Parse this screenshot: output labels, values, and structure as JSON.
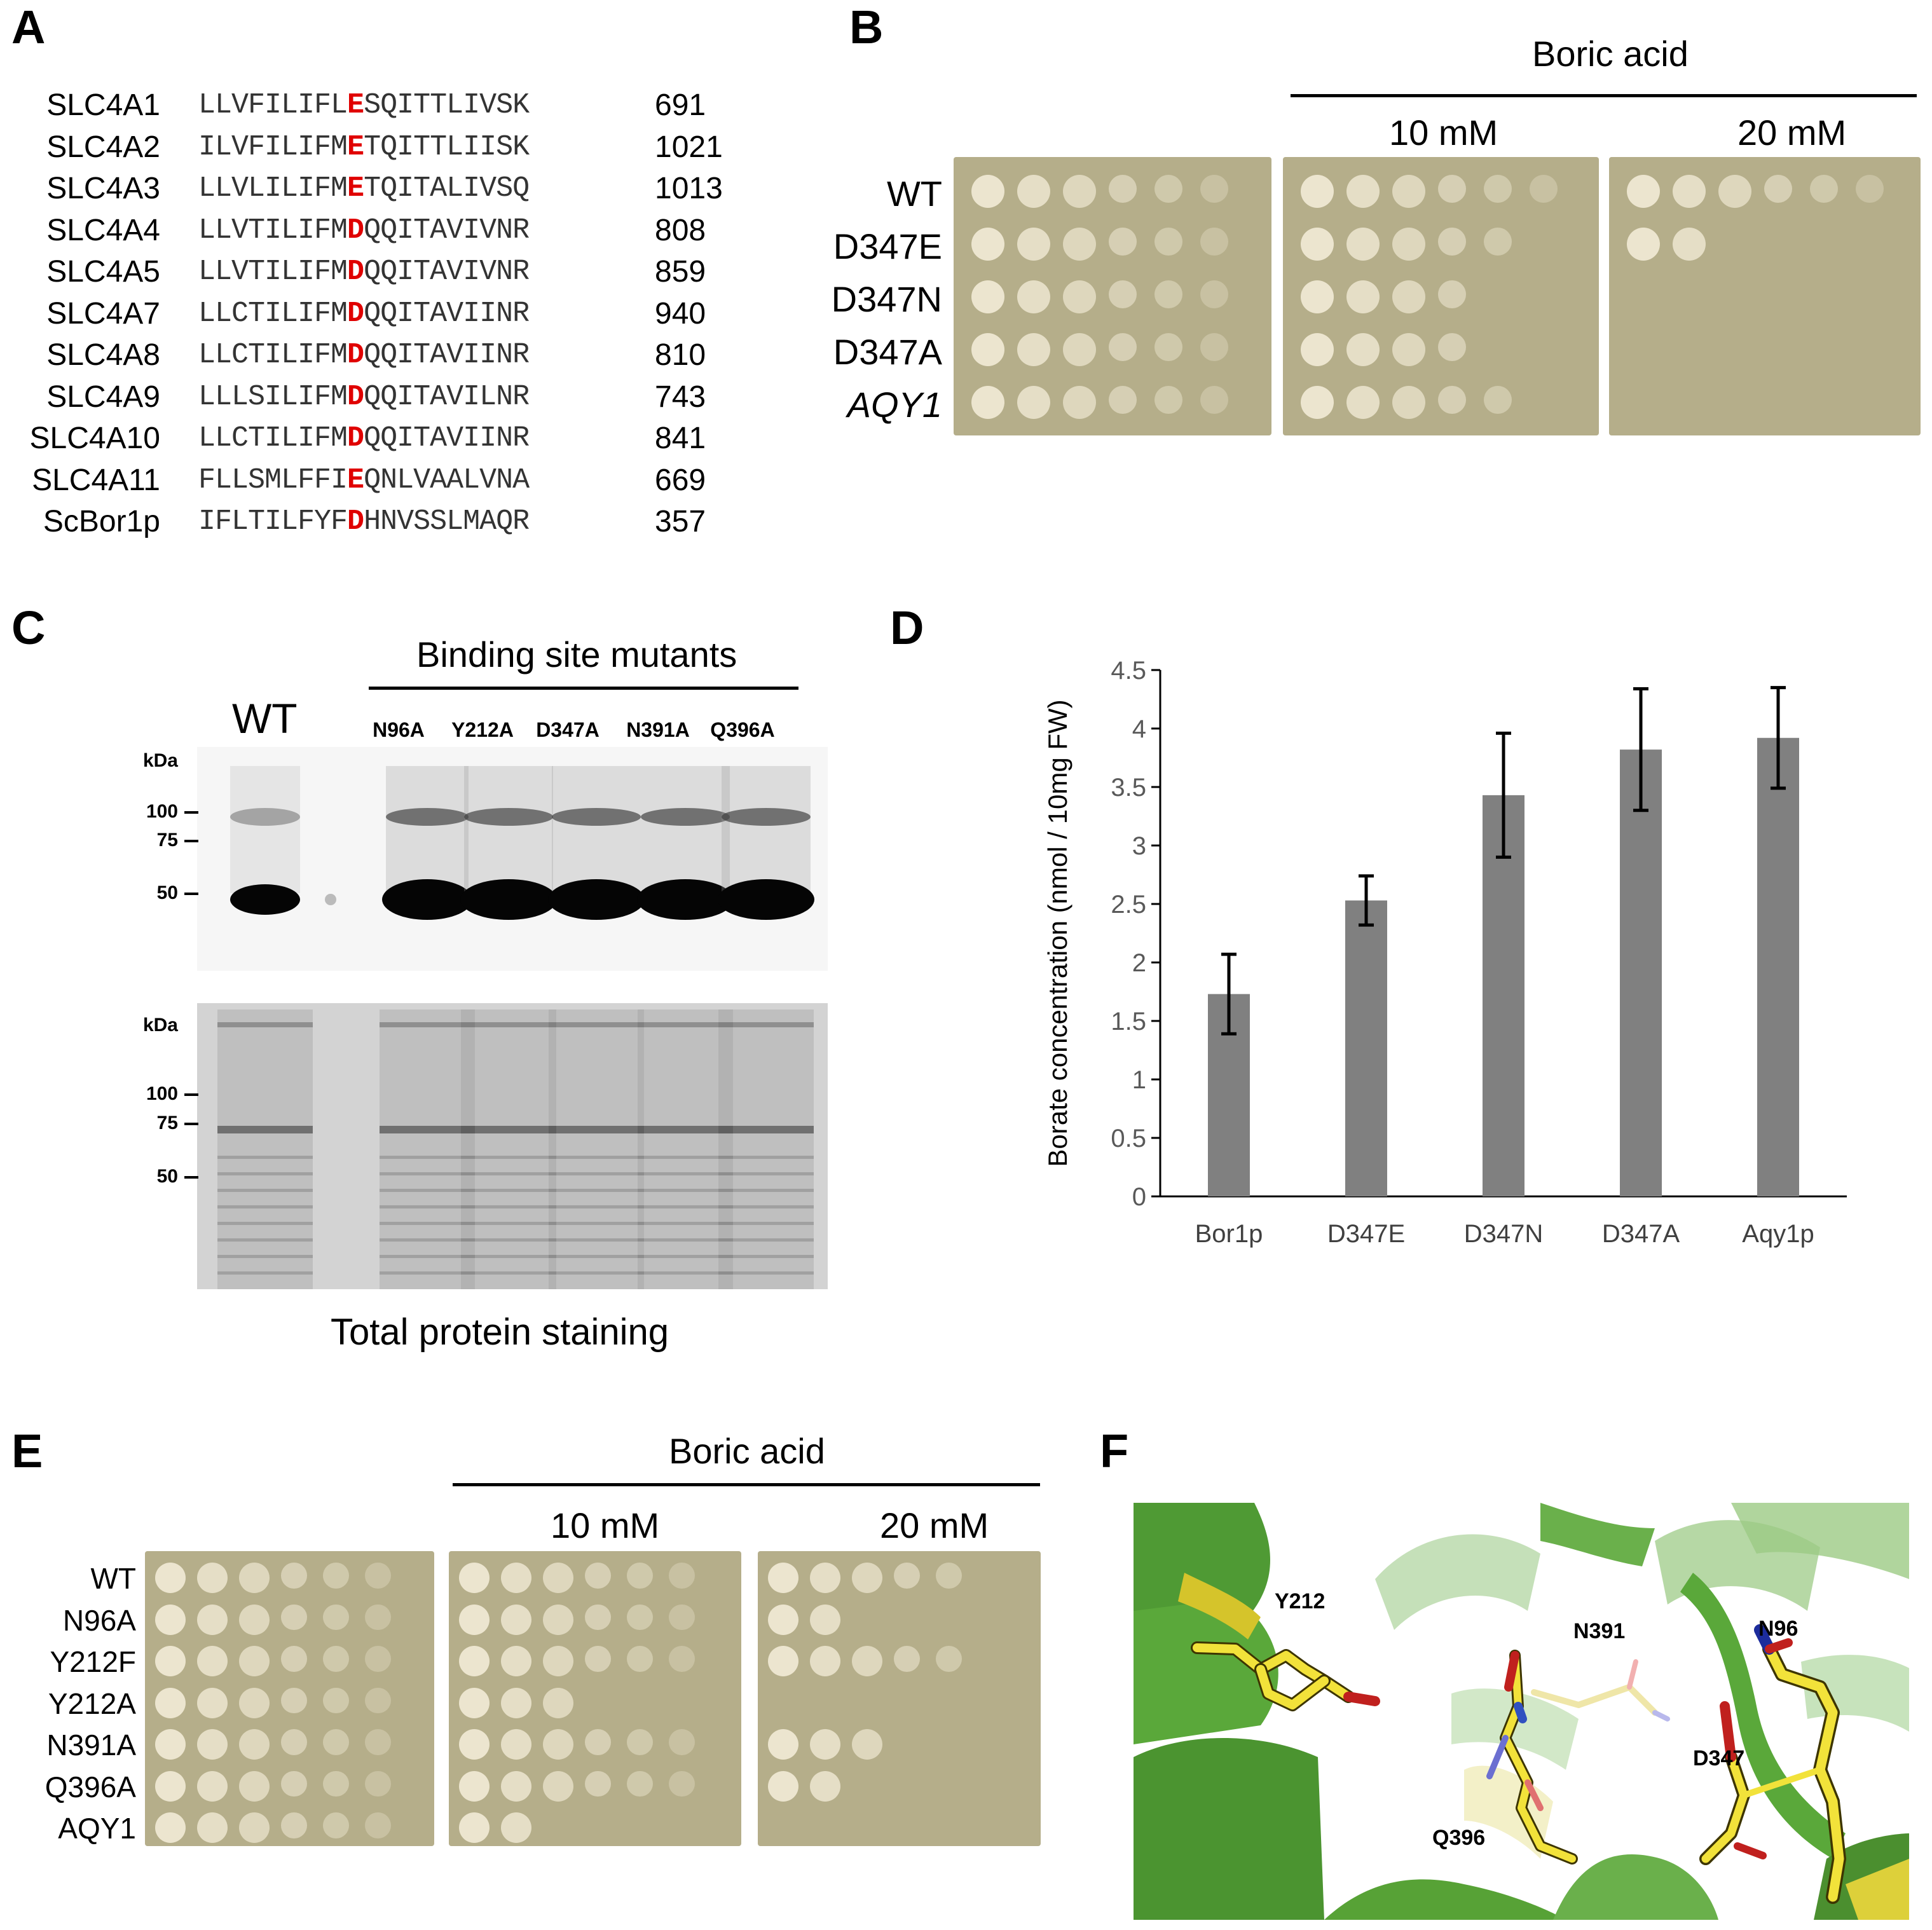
{
  "panels": {
    "A": "A",
    "B": "B",
    "C": "C",
    "D": "D",
    "E": "E",
    "F": "F"
  },
  "panelA": {
    "rows": [
      {
        "name": "SLC4A1",
        "pre": "LLVFILIFL",
        "res": "E",
        "post": "SQITTLIVSK",
        "num": "691"
      },
      {
        "name": "SLC4A2",
        "pre": "ILVFILIFM",
        "res": "E",
        "post": "TQITTLIISK",
        "num": "1021"
      },
      {
        "name": "SLC4A3",
        "pre": "LLVLILIFM",
        "res": "E",
        "post": "TQITALIVSQ",
        "num": "1013"
      },
      {
        "name": "SLC4A4",
        "pre": "LLVTILIFM",
        "res": "D",
        "post": "QQITAVIVNR",
        "num": "808"
      },
      {
        "name": "SLC4A5",
        "pre": "LLVTILIFM",
        "res": "D",
        "post": "QQITAVIVNR",
        "num": "859"
      },
      {
        "name": "SLC4A7",
        "pre": "LLCTILIFM",
        "res": "D",
        "post": "QQITAVIINR",
        "num": "940"
      },
      {
        "name": "SLC4A8",
        "pre": "LLCTILIFM",
        "res": "D",
        "post": "QQITAVIINR",
        "num": "810"
      },
      {
        "name": "SLC4A9",
        "pre": "LLLSILIFM",
        "res": "D",
        "post": "QQITAVILNR",
        "num": "743"
      },
      {
        "name": "SLC4A10",
        "pre": "LLCTILIFM",
        "res": "D",
        "post": "QQITAVIINR",
        "num": "841"
      },
      {
        "name": "SLC4A11",
        "pre": "FLLSMLFFI",
        "res": "E",
        "post": "QNLVAALVNA",
        "num": "669"
      },
      {
        "name": "ScBor1p",
        "pre": "IFLTILFYF",
        "res": "D",
        "post": "HNVSSLMAQR",
        "num": "357"
      }
    ]
  },
  "panelB": {
    "header": "Boric acid",
    "conc1": "10 mM",
    "conc2": "20 mM",
    "strains": [
      "WT",
      "D347E",
      "D347N",
      "D347A",
      "AQY1"
    ]
  },
  "panelC": {
    "header": "Binding site mutants",
    "wt": "WT",
    "lanes": [
      "N96A",
      "Y212A",
      "D347A",
      "N391A",
      "Q396A"
    ],
    "kda": "kDa",
    "markers": [
      "100",
      "75",
      "50"
    ],
    "caption": "Total protein staining"
  },
  "panelE": {
    "header": "Boric acid",
    "conc1": "10 mM",
    "conc2": "20 mM",
    "strains": [
      "WT",
      "N96A",
      "Y212F",
      "Y212A",
      "N391A",
      "Q396A",
      "AQY1"
    ]
  },
  "panelF": {
    "labels": [
      "Y212",
      "N391",
      "N96",
      "D347",
      "Q396"
    ]
  },
  "chart_data": {
    "type": "bar",
    "categories": [
      "Bor1p",
      "D347E",
      "D347N",
      "D347A",
      "Aqy1p"
    ],
    "values": [
      1.73,
      2.53,
      3.43,
      3.82,
      3.92
    ],
    "errors": [
      0.34,
      0.21,
      0.53,
      0.52,
      0.43
    ],
    "ylabel": "Borate concentration (nmol / 10mg FW)",
    "xlabel": "",
    "ylim": [
      0,
      4.5
    ],
    "yticks": [
      "0",
      "0.5",
      "1",
      "1.5",
      "2",
      "2.5",
      "3",
      "3.5",
      "4",
      "4.5"
    ],
    "grid": false,
    "bar_color": "#808080"
  },
  "colors": {
    "highlight": "#e00000",
    "bar": "#808080",
    "plate": "#b5ae8a",
    "spot": "#ece5cf",
    "helix": "#5aa83a",
    "stick": "#f2e23a"
  }
}
